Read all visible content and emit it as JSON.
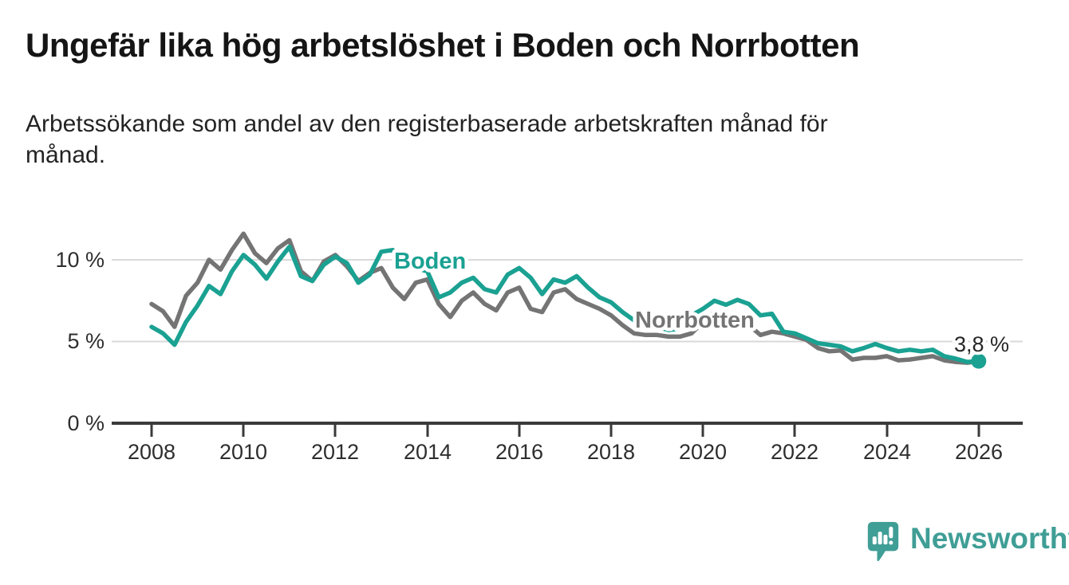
{
  "header": {
    "title": "Ungefär lika hög arbetslöshet i Boden och Norrbotten",
    "subtitle_line1": "Arbetssökande som andel av den registerbaserade arbetskraften månad för",
    "subtitle_line2": "månad."
  },
  "branding": {
    "logo_text": "Newsworthy",
    "logo_color": "#3f9e96",
    "logo_icon": "speech-bubble-bar-chart-icon"
  },
  "chart_data": {
    "type": "line",
    "unit": "percent of registered labour force",
    "frequency": "monthly (values estimated quarterly)",
    "grid": "horizontal-light",
    "xlim": [
      2007.1,
      2026.95
    ],
    "ylim": [
      0,
      12
    ],
    "x_ticks": [
      2008,
      2010,
      2012,
      2014,
      2016,
      2018,
      2020,
      2022,
      2024,
      2026
    ],
    "x_tick_labels": [
      "2008",
      "2010",
      "2012",
      "2014",
      "2016",
      "2018",
      "2020",
      "2022",
      "2024",
      "2026"
    ],
    "y_ticks": [
      10,
      5,
      0
    ],
    "y_tick_labels": [
      "10 %",
      "5 %",
      "0 %"
    ],
    "x": [
      2008,
      2008.25,
      2008.5,
      2008.75,
      2009,
      2009.25,
      2009.5,
      2009.75,
      2010,
      2010.25,
      2010.5,
      2010.75,
      2011,
      2011.25,
      2011.5,
      2011.75,
      2012,
      2012.25,
      2012.5,
      2012.75,
      2013,
      2013.25,
      2013.5,
      2013.75,
      2014,
      2014.25,
      2014.5,
      2014.75,
      2015,
      2015.25,
      2015.5,
      2015.75,
      2016,
      2016.25,
      2016.5,
      2016.75,
      2017,
      2017.25,
      2017.5,
      2017.75,
      2018,
      2018.25,
      2018.5,
      2018.75,
      2019,
      2019.25,
      2019.5,
      2019.75,
      2020,
      2020.25,
      2020.5,
      2020.75,
      2021,
      2021.25,
      2021.5,
      2021.75,
      2022,
      2022.25,
      2022.5,
      2022.75,
      2023,
      2023.25,
      2023.5,
      2023.75,
      2024,
      2024.25,
      2024.5,
      2024.75,
      2025,
      2025.25,
      2025.5,
      2025.75,
      2026
    ],
    "series": [
      {
        "name": "Norrbotten",
        "color": "#747474",
        "values": [
          7.3,
          6.85,
          5.9,
          7.8,
          8.6,
          10.0,
          9.4,
          10.6,
          11.6,
          10.4,
          9.8,
          10.7,
          11.2,
          9.3,
          8.7,
          9.9,
          10.3,
          9.6,
          8.7,
          9.2,
          9.5,
          8.3,
          7.6,
          8.6,
          8.8,
          7.3,
          6.5,
          7.5,
          8.0,
          7.3,
          6.9,
          8.0,
          8.3,
          7.0,
          6.8,
          8.0,
          8.2,
          7.6,
          7.3,
          7.0,
          6.6,
          6.0,
          5.5,
          5.4,
          5.4,
          5.3,
          5.3,
          5.5,
          6.2,
          6.8,
          6.6,
          6.3,
          6.0,
          5.4,
          5.6,
          5.5,
          5.3,
          5.1,
          4.6,
          4.4,
          4.45,
          3.9,
          4.0,
          4.0,
          4.1,
          3.85,
          3.9,
          4.0,
          4.1,
          3.85,
          3.75,
          3.7,
          3.8
        ]
      },
      {
        "name": "Boden",
        "color": "#1aa192",
        "values": [
          5.9,
          5.5,
          4.8,
          6.2,
          7.2,
          8.4,
          7.9,
          9.3,
          10.3,
          9.7,
          8.85,
          9.9,
          10.8,
          9.0,
          8.7,
          9.7,
          10.2,
          9.8,
          8.6,
          9.1,
          10.5,
          10.6,
          9.7,
          9.5,
          9.3,
          7.7,
          8.0,
          8.6,
          8.9,
          8.2,
          8.0,
          9.1,
          9.5,
          8.9,
          7.9,
          8.8,
          8.6,
          9.0,
          8.3,
          7.7,
          7.4,
          6.8,
          6.3,
          6.0,
          5.9,
          5.7,
          5.8,
          6.6,
          7.0,
          7.5,
          7.25,
          7.55,
          7.3,
          6.6,
          6.7,
          5.6,
          5.5,
          5.2,
          4.9,
          4.8,
          4.7,
          4.4,
          4.6,
          4.85,
          4.6,
          4.4,
          4.5,
          4.4,
          4.5,
          4.1,
          3.95,
          3.75,
          3.8
        ]
      }
    ],
    "end_label": "3,8 %",
    "end_dot": {
      "series": "Boden",
      "x": 2026,
      "value": 3.8
    }
  }
}
